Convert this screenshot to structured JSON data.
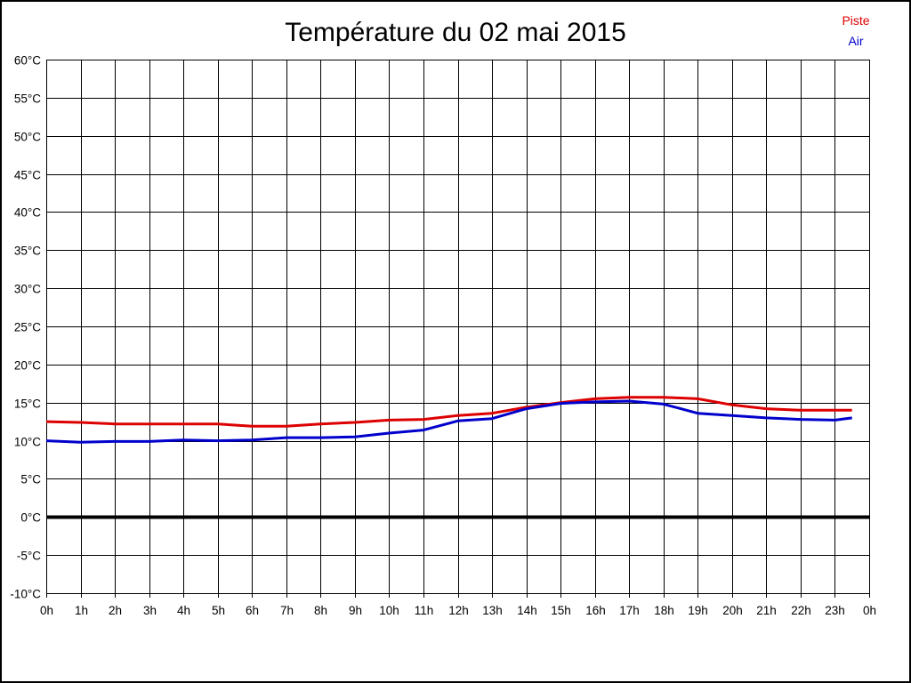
{
  "page": {
    "title": "Température du 02 mai 2015"
  },
  "legend": {
    "position": "top-right",
    "items": [
      {
        "label": "Piste",
        "color": "#dd0000"
      },
      {
        "label": "Air",
        "color": "#0000cc"
      }
    ]
  },
  "chart_data": {
    "type": "line",
    "title": "Température du 02 mai 2015",
    "xlabel": "",
    "ylabel": "",
    "grid": true,
    "background": "#ffffff",
    "grid_color": "#000000",
    "zero_line_bold": true,
    "ylim": [
      -10,
      60
    ],
    "y_tick_step": 5,
    "y_tick_labels": [
      "60°C",
      "55°C",
      "50°C",
      "45°C",
      "40°C",
      "35°C",
      "30°C",
      "25°C",
      "20°C",
      "15°C",
      "10°C",
      "5°C",
      "0°C",
      "-5°C",
      "-10°C"
    ],
    "xlim": [
      0,
      24
    ],
    "x_tick_labels": [
      "0h",
      "1h",
      "2h",
      "3h",
      "4h",
      "5h",
      "6h",
      "7h",
      "8h",
      "9h",
      "10h",
      "11h",
      "12h",
      "13h",
      "14h",
      "15h",
      "16h",
      "17h",
      "18h",
      "19h",
      "20h",
      "21h",
      "22h",
      "23h",
      "0h"
    ],
    "x": [
      0,
      1,
      2,
      3,
      4,
      5,
      6,
      7,
      8,
      9,
      10,
      11,
      12,
      13,
      14,
      15,
      16,
      17,
      18,
      19,
      20,
      21,
      22,
      23,
      23.5
    ],
    "series": [
      {
        "name": "Piste",
        "color": "#dd0000",
        "values": [
          12.5,
          12.4,
          12.2,
          12.2,
          12.2,
          12.2,
          11.9,
          11.9,
          12.2,
          12.4,
          12.7,
          12.8,
          13.3,
          13.6,
          14.4,
          15.0,
          15.5,
          15.7,
          15.7,
          15.5,
          14.7,
          14.2,
          14.0,
          14.0,
          14.0
        ]
      },
      {
        "name": "Air",
        "color": "#0000cc",
        "values": [
          10.0,
          9.8,
          9.9,
          9.9,
          10.1,
          10.0,
          10.1,
          10.4,
          10.4,
          10.5,
          11.0,
          11.4,
          12.6,
          12.9,
          14.2,
          14.9,
          15.1,
          15.2,
          14.8,
          13.6,
          13.3,
          13.0,
          12.8,
          12.7,
          13.0
        ]
      }
    ]
  }
}
